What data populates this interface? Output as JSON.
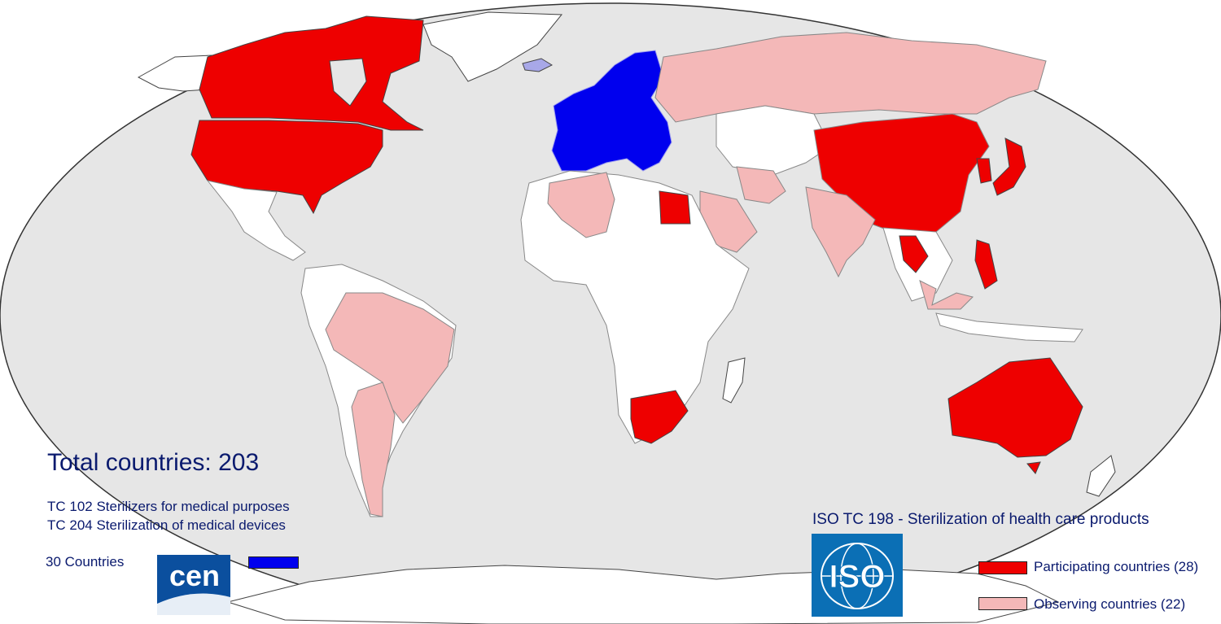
{
  "summary": {
    "total_label": "Total countries: 203"
  },
  "cen": {
    "committees": [
      "TC 102 Sterilizers for medical purposes",
      "TC 204 Sterilization of medical devices"
    ],
    "count_label": "30 Countries",
    "logo_text": "cen",
    "color": "#0000ee"
  },
  "iso": {
    "title": "ISO TC 198 - Sterilization of health care products",
    "logo_text": "ISO",
    "logo_bg": "#0b6fb5"
  },
  "legend": [
    {
      "label": "Participating countries (28)",
      "color": "#ee0000"
    },
    {
      "label": "Observing countries (22)",
      "color": "#f4b8b8"
    }
  ],
  "map": {
    "ocean_color": "#e6e6e6",
    "neutral_land_color": "#ffffff",
    "participating": [
      "Canada",
      "United States",
      "Egypt",
      "South Africa",
      "China",
      "Japan",
      "Korea",
      "Thailand",
      "Philippines",
      "Australia"
    ],
    "observing": [
      "Russia",
      "Brazil",
      "Argentina",
      "Algeria",
      "India",
      "Iran",
      "Saudi Arabia",
      "Malaysia"
    ],
    "cen_members": [
      "European countries"
    ]
  }
}
